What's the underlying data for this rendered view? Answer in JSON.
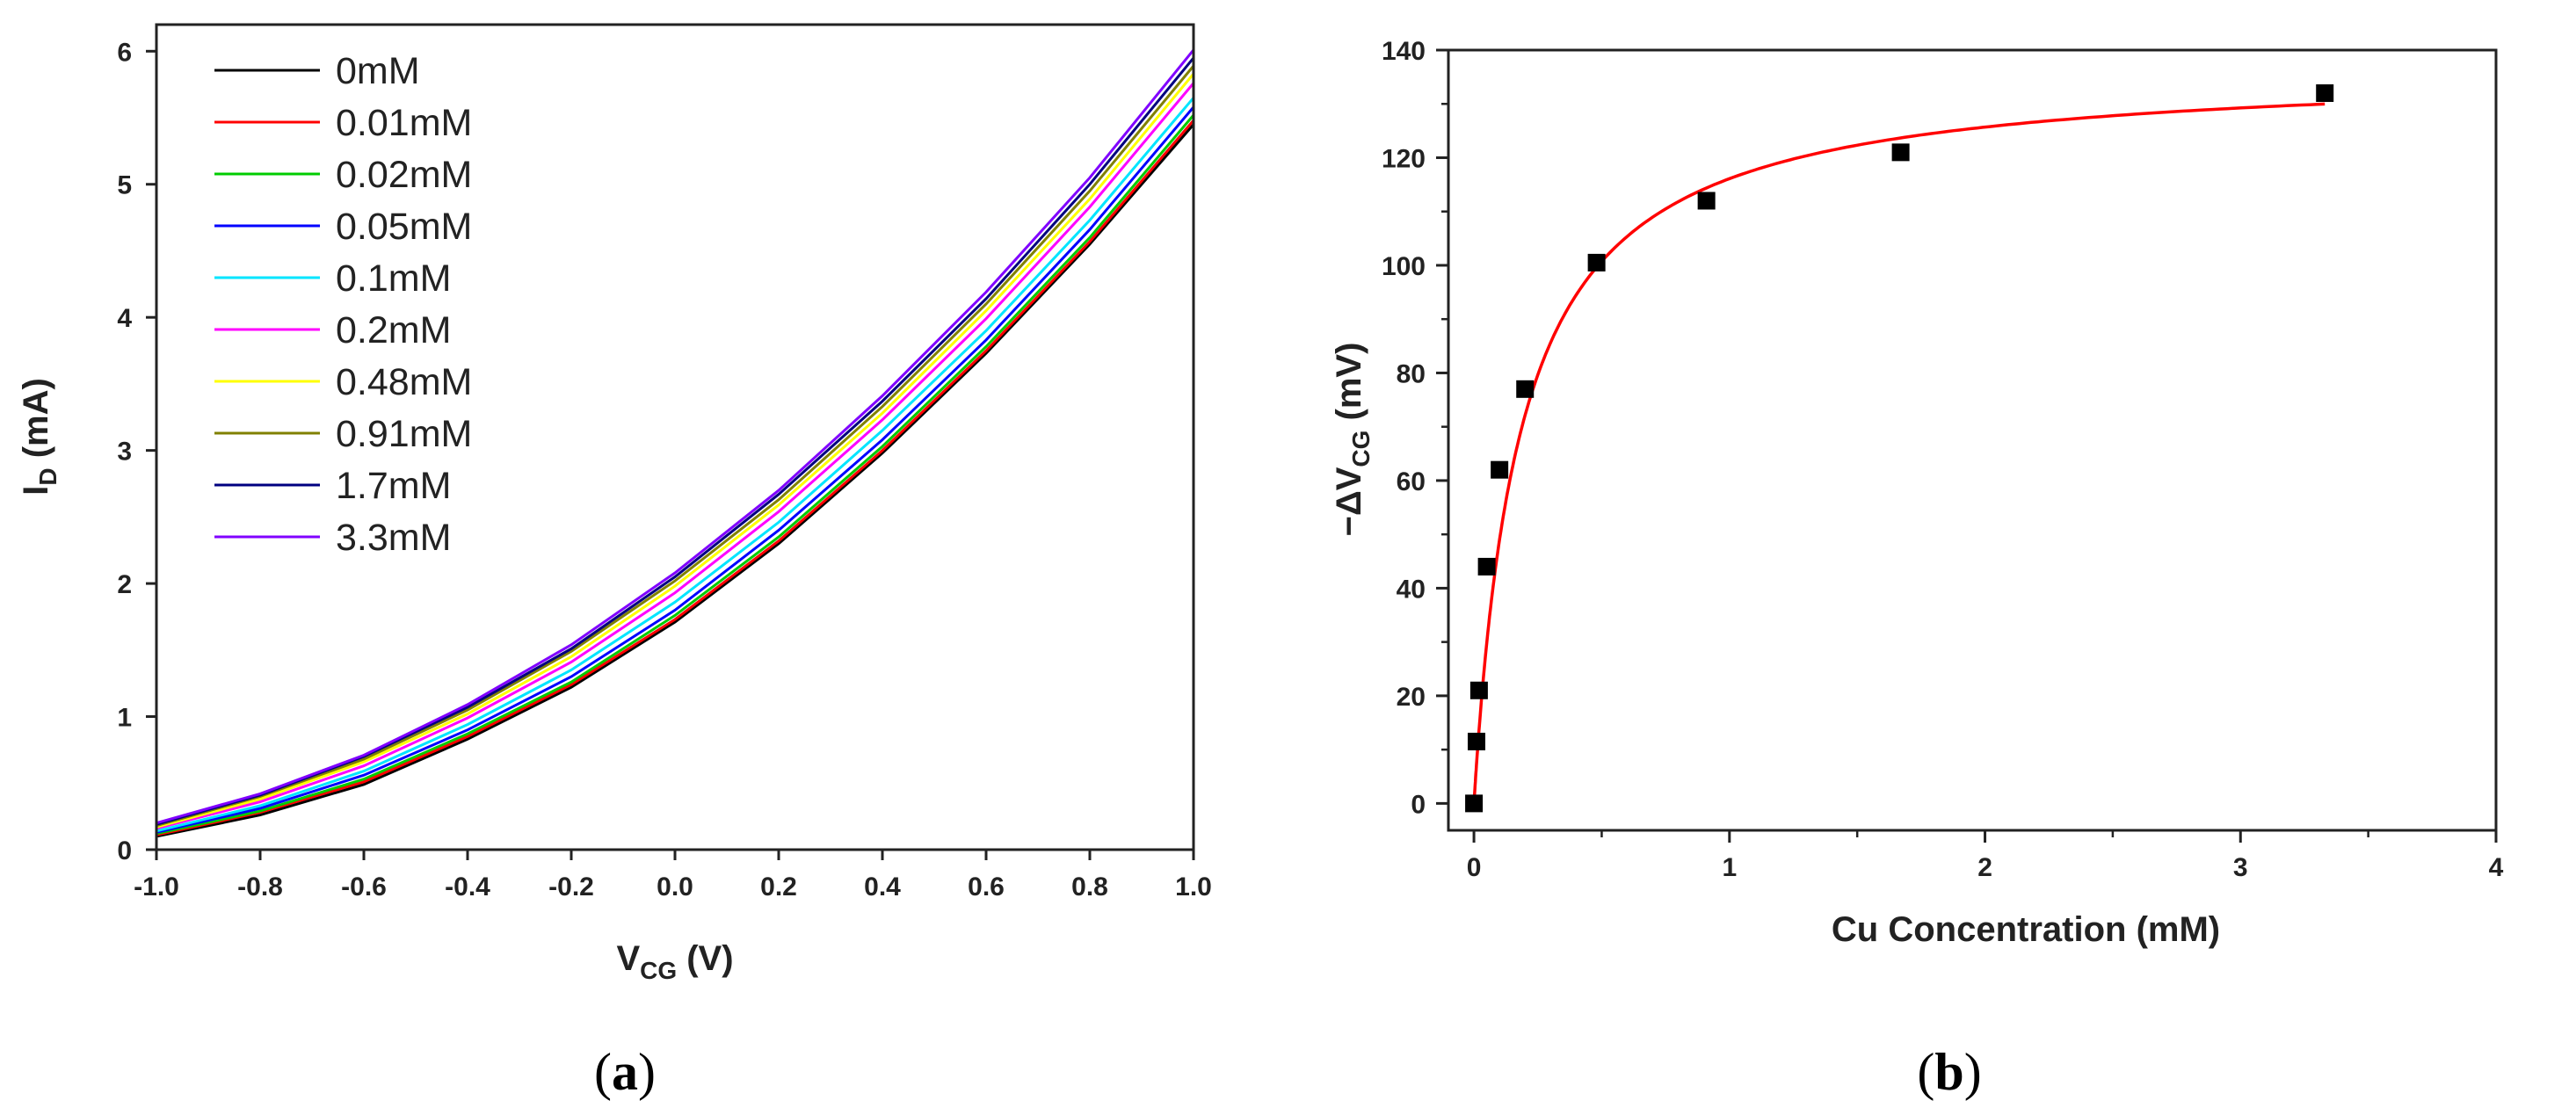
{
  "chart_data": [
    {
      "type": "line",
      "panel_label": {
        "open": "(",
        "letter": "a",
        "close": ")"
      },
      "xlabel": {
        "main": "V",
        "sub": "CG",
        "unit": " (V)"
      },
      "ylabel": {
        "main": "I",
        "sub": "D",
        "unit": " (mA)"
      },
      "xlim": [
        -1.0,
        1.0
      ],
      "ylim": [
        0,
        6.2
      ],
      "xticks": [
        -1.0,
        -0.8,
        -0.6,
        -0.4,
        -0.2,
        0.0,
        0.2,
        0.4,
        0.6,
        0.8,
        1.0
      ],
      "xtick_labels": [
        "-1.0",
        "-0.8",
        "-0.6",
        "-0.4",
        "-0.2",
        "0.0",
        "0.2",
        "0.4",
        "0.6",
        "0.8",
        "1.0"
      ],
      "yticks": [
        0,
        1,
        2,
        3,
        4,
        5,
        6
      ],
      "ytick_labels": [
        "0",
        "1",
        "2",
        "3",
        "4",
        "5",
        "6"
      ],
      "legend_position": "top-left",
      "x": [
        -1.0,
        -0.8,
        -0.6,
        -0.4,
        -0.2,
        0.0,
        0.2,
        0.4,
        0.6,
        0.8,
        1.0
      ],
      "series": [
        {
          "name": "0mM",
          "color": "#000000",
          "values": [
            0.1,
            0.26,
            0.49,
            0.83,
            1.22,
            1.71,
            2.3,
            2.98,
            3.73,
            4.55,
            5.45
          ]
        },
        {
          "name": "0.01mM",
          "color": "#ff0000",
          "values": [
            0.11,
            0.28,
            0.51,
            0.85,
            1.24,
            1.73,
            2.32,
            3.0,
            3.75,
            4.57,
            5.48
          ]
        },
        {
          "name": "0.02mM",
          "color": "#00cc00",
          "values": [
            0.12,
            0.29,
            0.53,
            0.87,
            1.26,
            1.76,
            2.35,
            3.03,
            3.78,
            4.6,
            5.52
          ]
        },
        {
          "name": "0.05mM",
          "color": "#0000ff",
          "values": [
            0.13,
            0.31,
            0.56,
            0.9,
            1.3,
            1.8,
            2.4,
            3.08,
            3.83,
            4.66,
            5.58
          ]
        },
        {
          "name": "0.1mM",
          "color": "#00e5ff",
          "values": [
            0.14,
            0.33,
            0.59,
            0.94,
            1.35,
            1.86,
            2.46,
            3.15,
            3.9,
            4.73,
            5.65
          ]
        },
        {
          "name": "0.2mM",
          "color": "#ff00ff",
          "values": [
            0.16,
            0.36,
            0.63,
            0.99,
            1.41,
            1.93,
            2.54,
            3.23,
            3.99,
            4.83,
            5.76
          ]
        },
        {
          "name": "0.48mM",
          "color": "#ffff00",
          "values": [
            0.17,
            0.38,
            0.66,
            1.02,
            1.45,
            1.98,
            2.59,
            3.28,
            4.05,
            4.89,
            5.83
          ]
        },
        {
          "name": "0.91mM",
          "color": "#808000",
          "values": [
            0.18,
            0.4,
            0.68,
            1.05,
            1.49,
            2.02,
            2.63,
            3.33,
            4.1,
            4.95,
            5.89
          ]
        },
        {
          "name": "1.7mM",
          "color": "#000080",
          "values": [
            0.19,
            0.41,
            0.7,
            1.07,
            1.51,
            2.05,
            2.67,
            3.37,
            4.14,
            5.0,
            5.95
          ]
        },
        {
          "name": "3.3mM",
          "color": "#8000ff",
          "values": [
            0.2,
            0.42,
            0.71,
            1.09,
            1.54,
            2.08,
            2.7,
            3.41,
            4.19,
            5.05,
            6.01
          ]
        }
      ]
    },
    {
      "type": "scatter",
      "panel_label": {
        "open": "(",
        "letter": "b",
        "close": ")"
      },
      "xlabel": "Cu Concentration (mM)",
      "ylabel": {
        "prefix": "−ΔV",
        "sub": "CG",
        "unit": " (mV)"
      },
      "xlim": [
        -0.1,
        4.0
      ],
      "ylim": [
        -5,
        140
      ],
      "xticks": [
        0,
        1,
        2,
        3,
        4
      ],
      "xtick_labels": [
        "0",
        "1",
        "2",
        "3",
        "4"
      ],
      "yticks": [
        0,
        20,
        40,
        60,
        80,
        100,
        120,
        140
      ],
      "ytick_labels": [
        "0",
        "20",
        "40",
        "60",
        "80",
        "100",
        "120",
        "140"
      ],
      "points": {
        "x": [
          0.0,
          0.01,
          0.02,
          0.05,
          0.1,
          0.2,
          0.48,
          0.91,
          1.67,
          3.33
        ],
        "y": [
          0,
          11.5,
          21,
          44,
          62,
          77,
          100.5,
          112,
          121,
          132
        ],
        "color": "#000000"
      },
      "fit": {
        "model": "Langmuir",
        "vmax": 137,
        "k": 0.18,
        "x_range": [
          0,
          3.33
        ],
        "color": "#ff0000"
      }
    }
  ]
}
